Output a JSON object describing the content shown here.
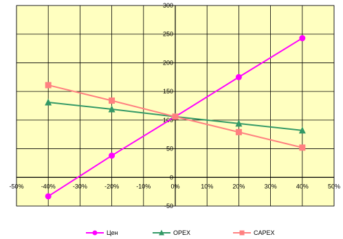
{
  "chart_data": {
    "type": "line",
    "title": "",
    "xlabel": "",
    "ylabel": "",
    "xlim": [
      -0.5,
      0.5
    ],
    "ylim": [
      -50,
      300
    ],
    "x_ticks": [
      "-50%",
      "-40%",
      "-30%",
      "-20%",
      "-10%",
      "0%",
      "10%",
      "20%",
      "30%",
      "40%",
      "50%"
    ],
    "y_ticks": [
      "-50",
      "0",
      "50",
      "100",
      "150",
      "200",
      "250",
      "300"
    ],
    "grid": true,
    "legend_position": "bottom",
    "plot_background": "#ffffc0",
    "series": [
      {
        "name": "Цен",
        "color": "#ff00ff",
        "marker": "circle",
        "x": [
          -0.4,
          -0.2,
          0.0,
          0.2,
          0.4
        ],
        "y": [
          -33,
          38,
          106,
          175,
          243
        ]
      },
      {
        "name": "OPEX",
        "color": "#339966",
        "marker": "triangle",
        "x": [
          -0.4,
          -0.2,
          0.0,
          0.2,
          0.4
        ],
        "y": [
          131,
          119,
          106,
          94,
          82
        ]
      },
      {
        "name": "CAPEX",
        "color": "#ff8080",
        "marker": "square",
        "x": [
          -0.4,
          -0.2,
          0.0,
          0.2,
          0.4
        ],
        "y": [
          161,
          134,
          106,
          79,
          52
        ]
      }
    ]
  }
}
